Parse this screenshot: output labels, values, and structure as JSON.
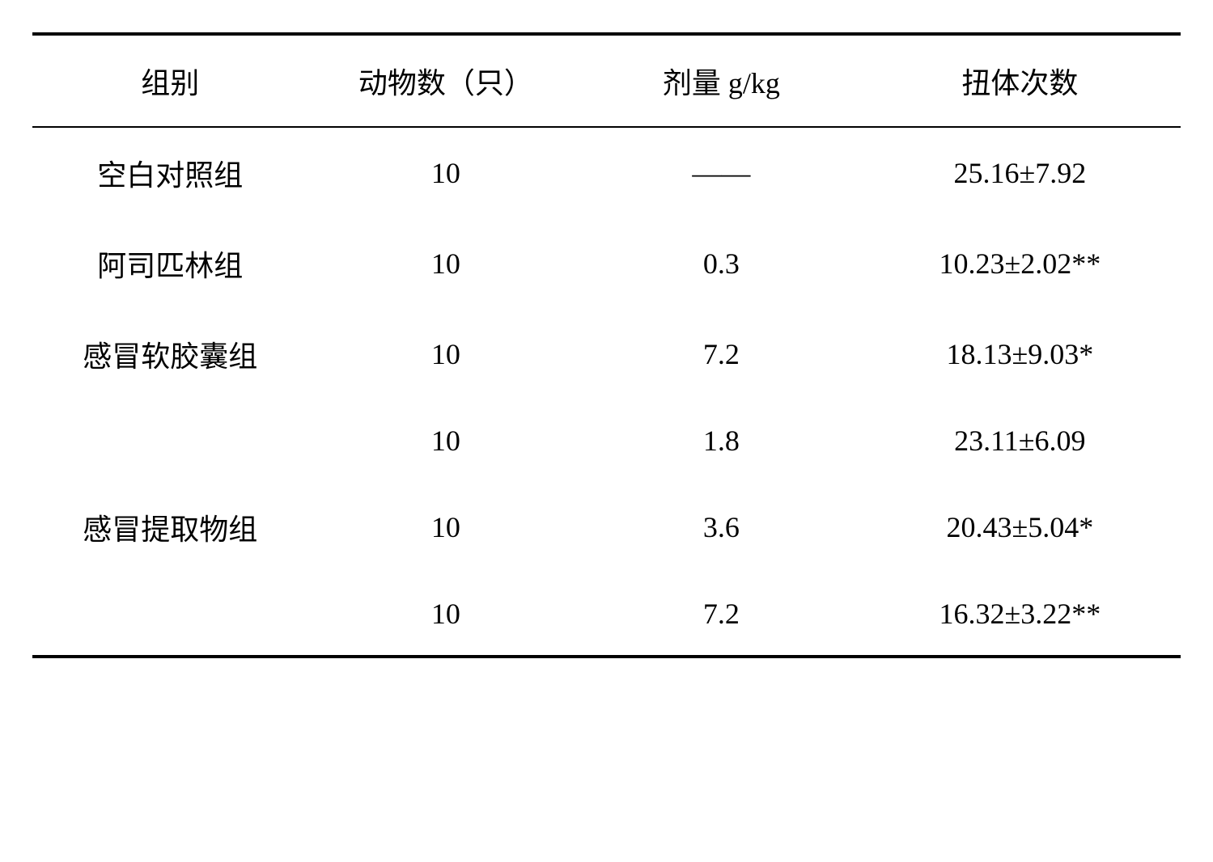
{
  "table": {
    "columns": [
      "组别",
      "动物数（只）",
      "剂量 g/kg",
      "扭体次数"
    ],
    "rows": [
      [
        "空白对照组",
        "10",
        "——",
        "25.16±7.92"
      ],
      [
        "阿司匹林组",
        "10",
        "0.3",
        "10.23±2.02**"
      ],
      [
        "感冒软胶囊组",
        "10",
        "7.2",
        "18.13±9.03*"
      ],
      [
        "",
        "10",
        "1.8",
        "23.11±6.09"
      ],
      [
        "感冒提取物组",
        "10",
        "3.6",
        "20.43±5.04*"
      ],
      [
        "",
        "10",
        "7.2",
        "16.32±3.22**"
      ]
    ]
  }
}
